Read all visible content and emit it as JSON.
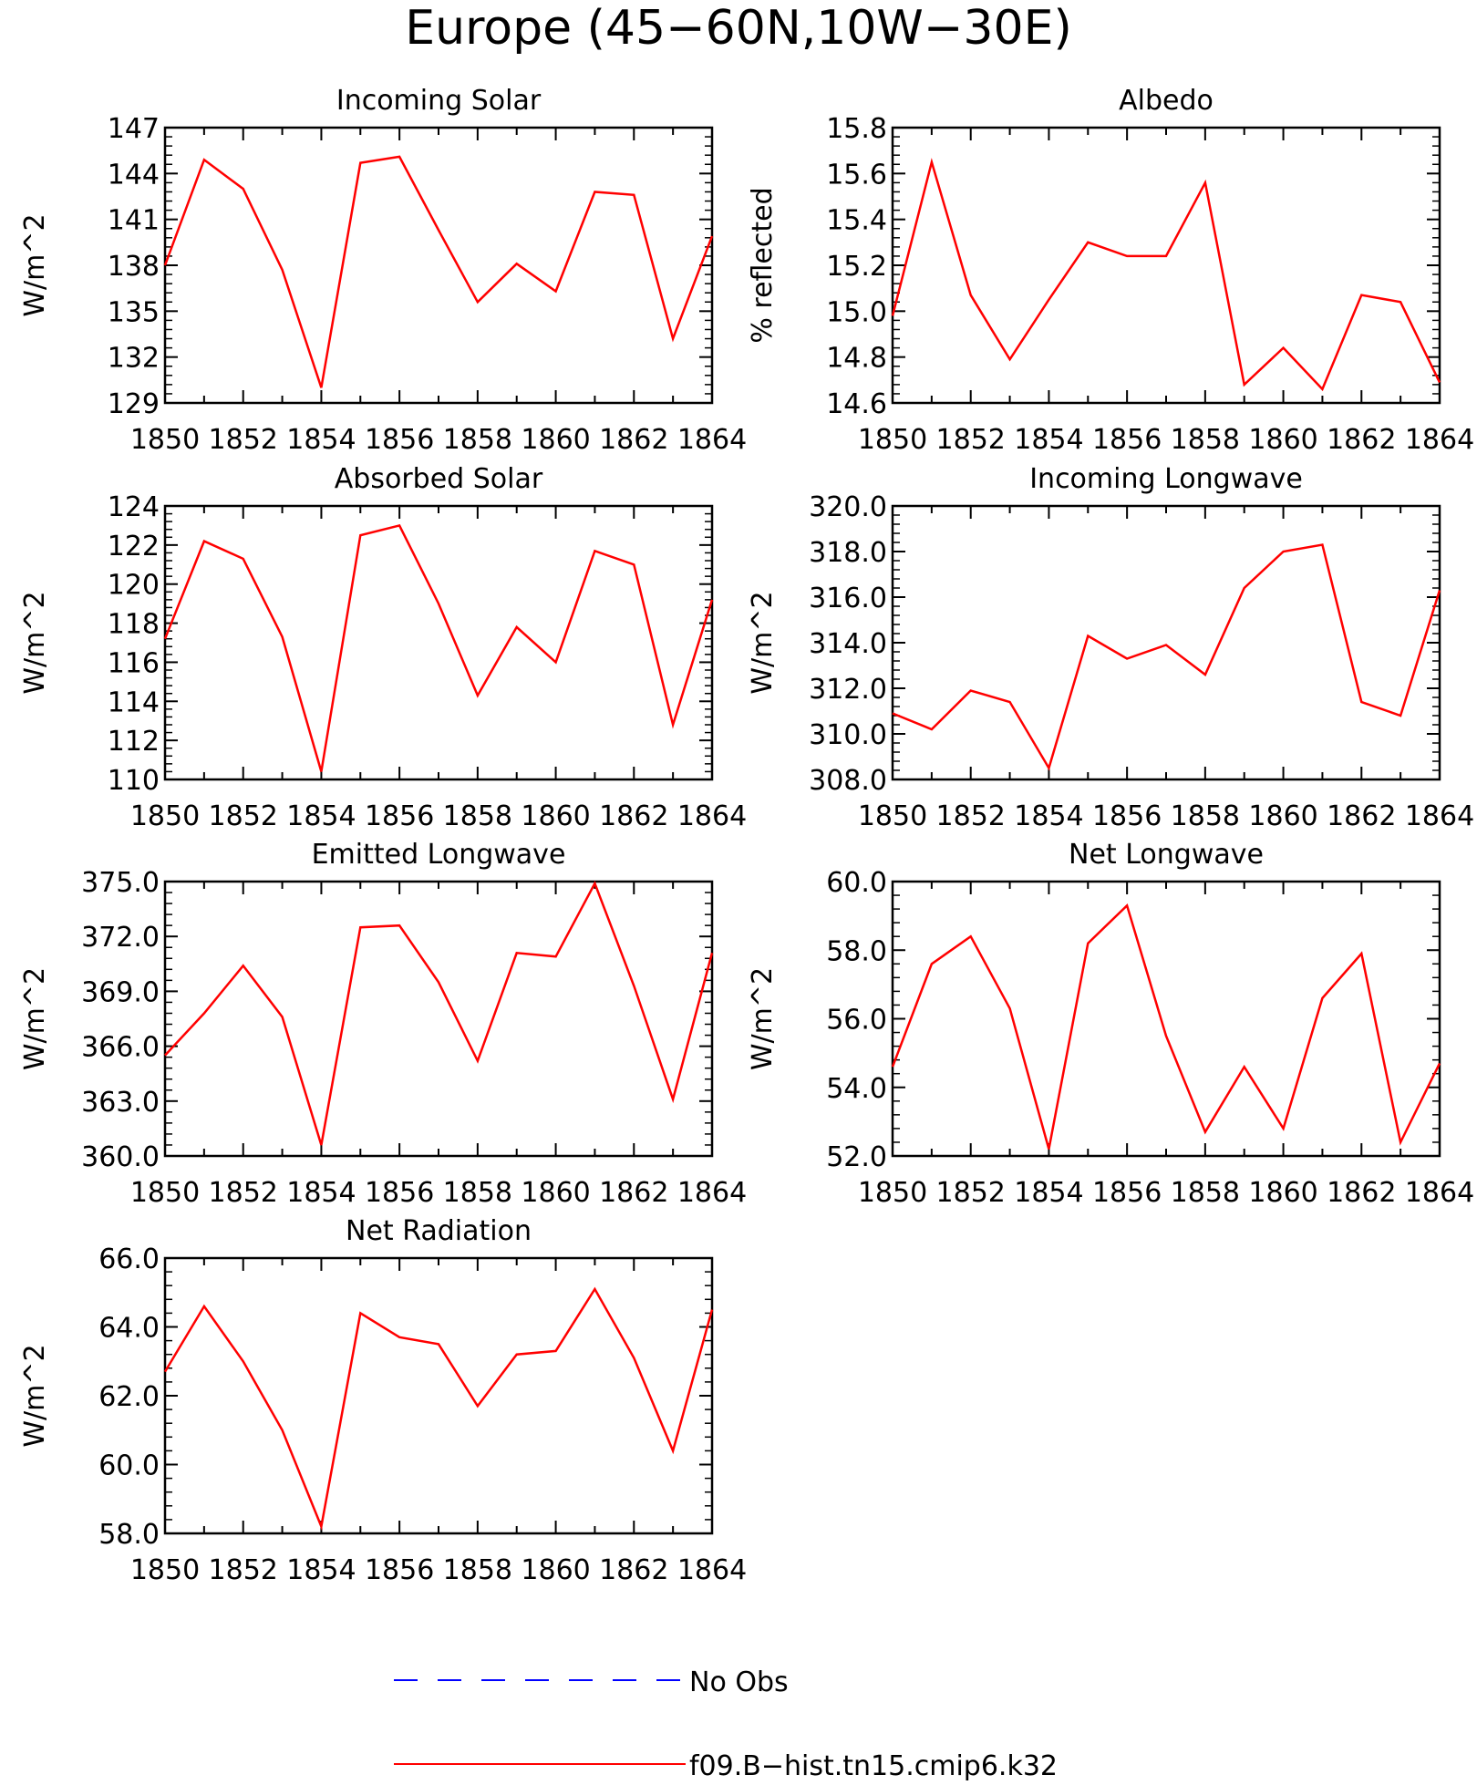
{
  "figure": {
    "title": "Europe (45−60N,10W−30E)"
  },
  "colors": {
    "axis": "#000000",
    "model_line": "#ff0000",
    "obs_line": "#0000ff"
  },
  "legend": {
    "entries": [
      {
        "label": "No Obs",
        "style": "dashed",
        "color": "#0000ff"
      },
      {
        "label": "f09.B−hist.tn15.cmip6.k32",
        "style": "solid",
        "color": "#ff0000"
      }
    ]
  },
  "chart_data": [
    {
      "type": "line",
      "title": "Incoming Solar",
      "ylabel": "W/m^2",
      "xlim": [
        1850,
        1864
      ],
      "ylim": [
        129,
        147
      ],
      "x_ticks": [
        "1850",
        "1852",
        "1854",
        "1856",
        "1858",
        "1860",
        "1862",
        "1864"
      ],
      "y_ticks": [
        "129",
        "132",
        "135",
        "138",
        "141",
        "144",
        "147"
      ],
      "x": [
        1850,
        1851,
        1852,
        1853,
        1854,
        1855,
        1856,
        1857,
        1858,
        1859,
        1860,
        1861,
        1862,
        1863,
        1864
      ],
      "series": [
        {
          "name": "f09.B−hist.tn15.cmip6.k32",
          "values": [
            138.0,
            144.9,
            143.0,
            137.7,
            130.0,
            144.7,
            145.1,
            140.3,
            135.6,
            138.1,
            136.3,
            142.8,
            142.6,
            133.2,
            139.9
          ]
        }
      ]
    },
    {
      "type": "line",
      "title": "Albedo",
      "ylabel": "% reflected",
      "xlim": [
        1850,
        1864
      ],
      "ylim": [
        14.6,
        15.8
      ],
      "x_ticks": [
        "1850",
        "1852",
        "1854",
        "1856",
        "1858",
        "1860",
        "1862",
        "1864"
      ],
      "y_ticks": [
        "14.6",
        "14.8",
        "15.0",
        "15.2",
        "15.4",
        "15.6",
        "15.8"
      ],
      "x": [
        1850,
        1851,
        1852,
        1853,
        1854,
        1855,
        1856,
        1857,
        1858,
        1859,
        1860,
        1861,
        1862,
        1863,
        1864
      ],
      "series": [
        {
          "name": "f09.B−hist.tn15.cmip6.k32",
          "values": [
            14.98,
            15.65,
            15.07,
            14.79,
            15.05,
            15.3,
            15.24,
            15.24,
            15.56,
            14.68,
            14.84,
            14.66,
            15.07,
            15.04,
            14.69
          ]
        }
      ]
    },
    {
      "type": "line",
      "title": "Absorbed Solar",
      "ylabel": "W/m^2",
      "xlim": [
        1850,
        1864
      ],
      "ylim": [
        110,
        124
      ],
      "x_ticks": [
        "1850",
        "1852",
        "1854",
        "1856",
        "1858",
        "1860",
        "1862",
        "1864"
      ],
      "y_ticks": [
        "110",
        "112",
        "114",
        "116",
        "118",
        "120",
        "122",
        "124"
      ],
      "x": [
        1850,
        1851,
        1852,
        1853,
        1854,
        1855,
        1856,
        1857,
        1858,
        1859,
        1860,
        1861,
        1862,
        1863,
        1864
      ],
      "series": [
        {
          "name": "f09.B−hist.tn15.cmip6.k32",
          "values": [
            117.2,
            122.2,
            121.3,
            117.3,
            110.4,
            122.5,
            123.0,
            119.0,
            114.3,
            117.8,
            116.0,
            121.7,
            121.0,
            112.8,
            119.2
          ]
        }
      ]
    },
    {
      "type": "line",
      "title": "Incoming Longwave",
      "ylabel": "W/m^2",
      "xlim": [
        1850,
        1864
      ],
      "ylim": [
        308.0,
        320.0
      ],
      "x_ticks": [
        "1850",
        "1852",
        "1854",
        "1856",
        "1858",
        "1860",
        "1862",
        "1864"
      ],
      "y_ticks": [
        "308.0",
        "310.0",
        "312.0",
        "314.0",
        "316.0",
        "318.0",
        "320.0"
      ],
      "x": [
        1850,
        1851,
        1852,
        1853,
        1854,
        1855,
        1856,
        1857,
        1858,
        1859,
        1860,
        1861,
        1862,
        1863,
        1864
      ],
      "series": [
        {
          "name": "f09.B−hist.tn15.cmip6.k32",
          "values": [
            310.9,
            310.2,
            311.9,
            311.4,
            308.5,
            314.3,
            313.3,
            313.9,
            312.6,
            316.4,
            318.0,
            318.3,
            311.4,
            310.8,
            316.3
          ]
        }
      ]
    },
    {
      "type": "line",
      "title": "Emitted Longwave",
      "ylabel": "W/m^2",
      "xlim": [
        1850,
        1864
      ],
      "ylim": [
        360.0,
        375.0
      ],
      "x_ticks": [
        "1850",
        "1852",
        "1854",
        "1856",
        "1858",
        "1860",
        "1862",
        "1864"
      ],
      "y_ticks": [
        "360.0",
        "363.0",
        "366.0",
        "369.0",
        "372.0",
        "375.0"
      ],
      "x": [
        1850,
        1851,
        1852,
        1853,
        1854,
        1855,
        1856,
        1857,
        1858,
        1859,
        1860,
        1861,
        1862,
        1863,
        1864
      ],
      "series": [
        {
          "name": "f09.B−hist.tn15.cmip6.k32",
          "values": [
            365.5,
            367.8,
            370.4,
            367.6,
            360.6,
            372.5,
            372.6,
            369.5,
            365.2,
            371.1,
            370.9,
            374.9,
            369.3,
            363.1,
            371.1
          ]
        }
      ]
    },
    {
      "type": "line",
      "title": "Net Longwave",
      "ylabel": "W/m^2",
      "xlim": [
        1850,
        1864
      ],
      "ylim": [
        52.0,
        60.0
      ],
      "x_ticks": [
        "1850",
        "1852",
        "1854",
        "1856",
        "1858",
        "1860",
        "1862",
        "1864"
      ],
      "y_ticks": [
        "52.0",
        "54.0",
        "56.0",
        "58.0",
        "60.0"
      ],
      "x": [
        1850,
        1851,
        1852,
        1853,
        1854,
        1855,
        1856,
        1857,
        1858,
        1859,
        1860,
        1861,
        1862,
        1863,
        1864
      ],
      "series": [
        {
          "name": "f09.B−hist.tn15.cmip6.k32",
          "values": [
            54.6,
            57.6,
            58.4,
            56.3,
            52.2,
            58.2,
            59.3,
            55.5,
            52.7,
            54.6,
            52.8,
            56.6,
            57.9,
            52.4,
            54.7
          ]
        }
      ]
    },
    {
      "type": "line",
      "title": "Net Radiation",
      "ylabel": "W/m^2",
      "xlim": [
        1850,
        1864
      ],
      "ylim": [
        58.0,
        66.0
      ],
      "x_ticks": [
        "1850",
        "1852",
        "1854",
        "1856",
        "1858",
        "1860",
        "1862",
        "1864"
      ],
      "y_ticks": [
        "58.0",
        "60.0",
        "62.0",
        "64.0",
        "66.0"
      ],
      "x": [
        1850,
        1851,
        1852,
        1853,
        1854,
        1855,
        1856,
        1857,
        1858,
        1859,
        1860,
        1861,
        1862,
        1863,
        1864
      ],
      "series": [
        {
          "name": "f09.B−hist.tn15.cmip6.k32",
          "values": [
            62.7,
            64.6,
            63.0,
            61.0,
            58.2,
            64.4,
            63.7,
            63.5,
            61.7,
            63.2,
            63.3,
            65.1,
            63.1,
            60.4,
            64.5
          ]
        }
      ]
    }
  ]
}
